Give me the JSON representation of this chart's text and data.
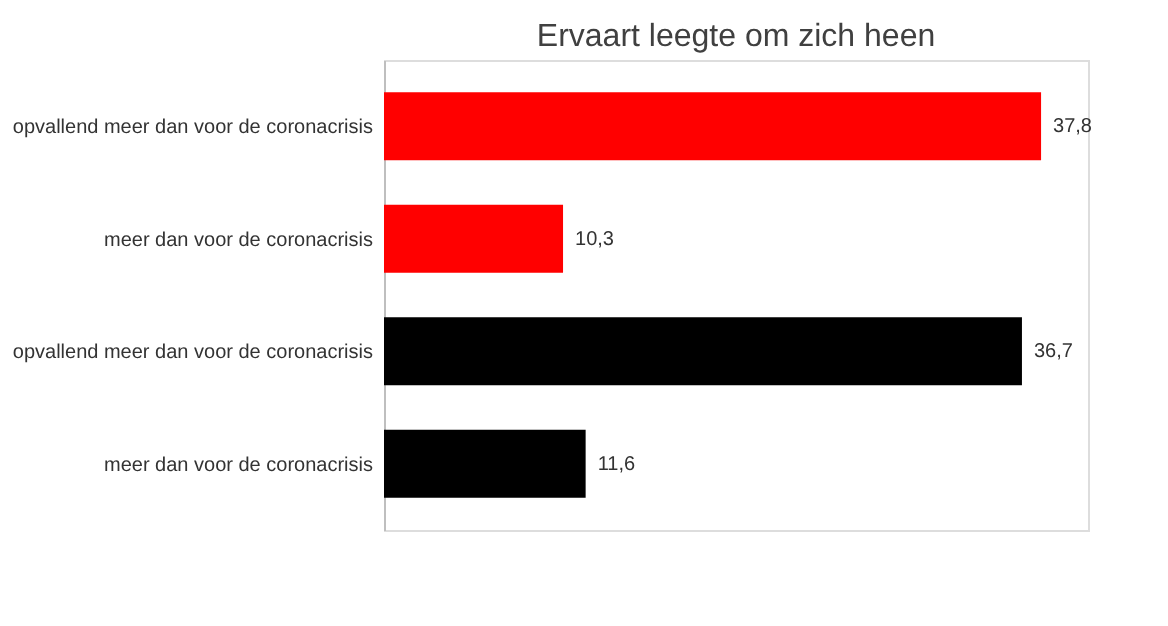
{
  "chart_data": {
    "type": "bar",
    "orientation": "horizontal",
    "title": "Ervaart leegte om zich heen",
    "categories": [
      "opvallend meer dan voor de coronacrisis",
      "meer dan voor de coronacrisis",
      "opvallend meer dan voor de coronacrisis",
      "meer dan voor de coronacrisis"
    ],
    "values": [
      37.8,
      10.3,
      36.7,
      11.6
    ],
    "value_labels": [
      "37,8",
      "10,3",
      "36,7",
      "11,6"
    ],
    "colors": [
      "#ff0000",
      "#ff0000",
      "#000000",
      "#000000"
    ],
    "xlim": [
      0,
      40.5
    ],
    "grid": false
  }
}
